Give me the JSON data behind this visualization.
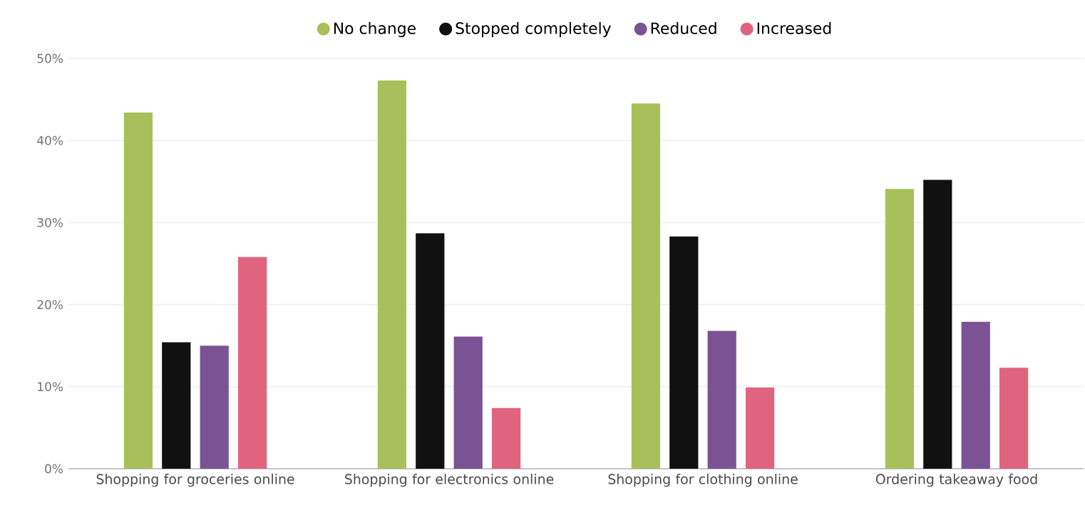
{
  "chart_data": {
    "type": "bar",
    "categories": [
      "Shopping for groceries online",
      "Shopping for electronics online",
      "Shopping for clothing online",
      "Ordering takeaway food"
    ],
    "series": [
      {
        "name": "No change",
        "color": "#a9c05a",
        "values": [
          43.4,
          47.3,
          44.5,
          34.1
        ]
      },
      {
        "name": "Stopped completely",
        "color": "#111111",
        "values": [
          15.4,
          28.7,
          28.3,
          35.2
        ]
      },
      {
        "name": "Reduced",
        "color": "#7b5394",
        "values": [
          15.0,
          16.1,
          16.8,
          17.9
        ]
      },
      {
        "name": "Increased",
        "color": "#e0647e",
        "values": [
          25.8,
          7.4,
          9.9,
          12.3
        ]
      }
    ],
    "ylim": [
      0,
      50
    ],
    "yticks": [
      {
        "value": 0,
        "label": "0%"
      },
      {
        "value": 10,
        "label": "10%"
      },
      {
        "value": 20,
        "label": "20%"
      },
      {
        "value": 30,
        "label": "30%"
      },
      {
        "value": 40,
        "label": "40%"
      },
      {
        "value": 50,
        "label": "50%"
      }
    ],
    "grid": "y",
    "legend": "top"
  }
}
